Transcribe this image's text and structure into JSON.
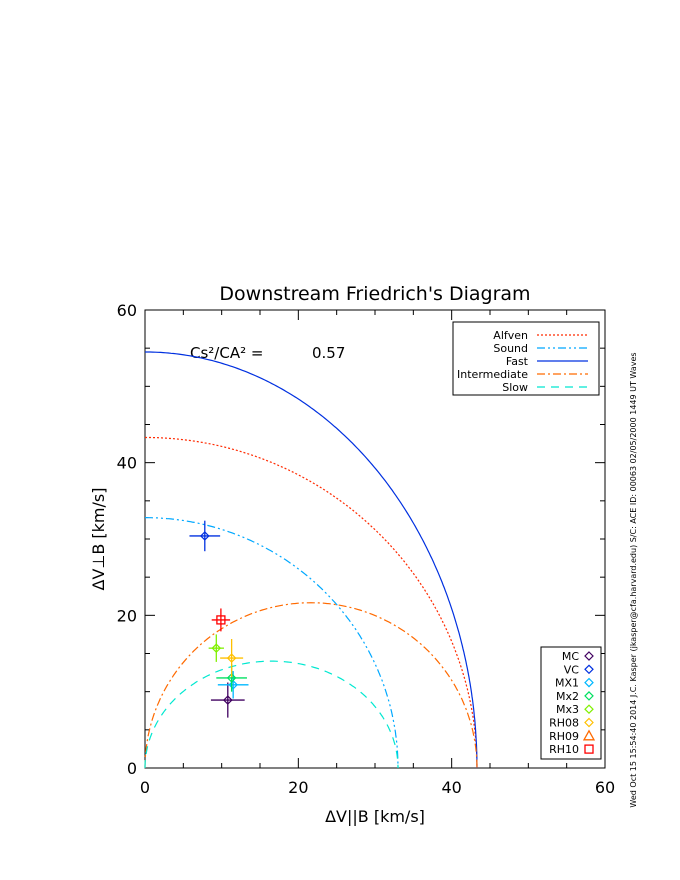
{
  "chart_data": {
    "type": "line",
    "title": "Downstream Friedrich's Diagram",
    "xlabel": "ΔV||B [km/s]",
    "ylabel": "ΔV⊥B [km/s]",
    "xlim": [
      0,
      60
    ],
    "ylim": [
      0,
      60
    ],
    "xticks": [
      "0",
      "20",
      "40",
      "60"
    ],
    "yticks": [
      "0",
      "20",
      "40",
      "60"
    ],
    "annotation": {
      "label": "Cs²/CA² =",
      "value": "0.57"
    },
    "series": [
      {
        "name": "Alfven",
        "color": "#ff2a00",
        "style": "dot",
        "kind": "ellipse",
        "cx": 0,
        "rx": 43.3,
        "ry": 43.3
      },
      {
        "name": "Sound",
        "color": "#00a8ff",
        "style": "dashdotdot",
        "kind": "ellipse",
        "cx": 0,
        "rx": 33.0,
        "ry": 32.8
      },
      {
        "name": "Fast",
        "color": "#0030e0",
        "style": "solid",
        "kind": "ellipse",
        "cx": 0,
        "rx": 43.3,
        "ry": 54.5
      },
      {
        "name": "Intermediate",
        "color": "#ff6a00",
        "style": "dashdot",
        "kind": "semi",
        "cx": 21.65,
        "rx": 21.65,
        "ry": 21.65
      },
      {
        "name": "Slow",
        "color": "#00e8d0",
        "style": "dash",
        "kind": "semi",
        "cx": 16.5,
        "rx": 16.5,
        "ry": 14
      }
    ],
    "points": [
      {
        "name": "MC",
        "color": "#400060",
        "marker": "diamond",
        "x": 10.8,
        "y": 8.9,
        "ex": 2.2,
        "ey": 2.3
      },
      {
        "name": "VC",
        "color": "#0030e0",
        "marker": "diamond",
        "x": 7.8,
        "y": 30.4,
        "ex": 2.0,
        "ey": 2.0
      },
      {
        "name": "MX1",
        "color": "#00b8ff",
        "marker": "diamond",
        "x": 11.5,
        "y": 10.9,
        "ex": 2.0,
        "ey": 1.8
      },
      {
        "name": "Mx2",
        "color": "#00e060",
        "marker": "diamond",
        "x": 11.3,
        "y": 11.8,
        "ex": 2.0,
        "ey": 1.8
      },
      {
        "name": "Mx3",
        "color": "#80f000",
        "marker": "diamond",
        "x": 9.3,
        "y": 15.7,
        "ex": 1.0,
        "ey": 1.8
      },
      {
        "name": "RH08",
        "color": "#ffc000",
        "marker": "diamond",
        "x": 11.3,
        "y": 14.4,
        "ex": 1.5,
        "ey": 2.5
      },
      {
        "name": "RH09",
        "color": "#ff6a00",
        "marker": "triangle",
        "x": null,
        "y": null
      },
      {
        "name": "RH10",
        "color": "#ff0000",
        "marker": "square",
        "x": 9.9,
        "y": 19.4,
        "ex": 1.2,
        "ey": 1.5
      }
    ]
  },
  "side_text": "Wed Oct 15 15:54:40 2014   J.C. Kasper (jkasper@cfa.harvard.edu)   S/C: ACE ID: 00063 02/05/2000   1449 UT Waves"
}
